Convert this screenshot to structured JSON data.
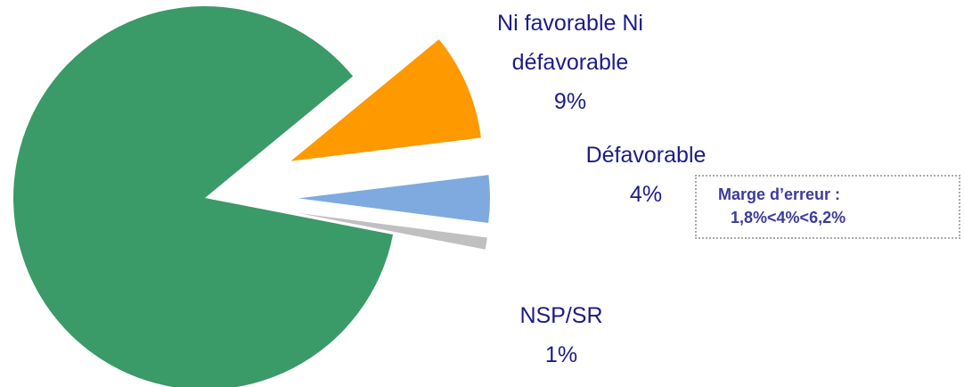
{
  "chart_data": {
    "type": "pie",
    "categories": [
      null,
      "Ni favorable Ni défavorable",
      "Défavorable",
      "NSP/SR"
    ],
    "values": [
      86,
      9,
      4,
      1
    ],
    "value_labels": [
      null,
      "9%",
      "4%",
      "1%"
    ],
    "colors": [
      "#3a9a68",
      "#ff9900",
      "#7eaadf",
      "#c0c0c0"
    ],
    "annotation": {
      "title": "Marge d’erreur :",
      "text": "1,8%<4%<6,2%"
    }
  }
}
